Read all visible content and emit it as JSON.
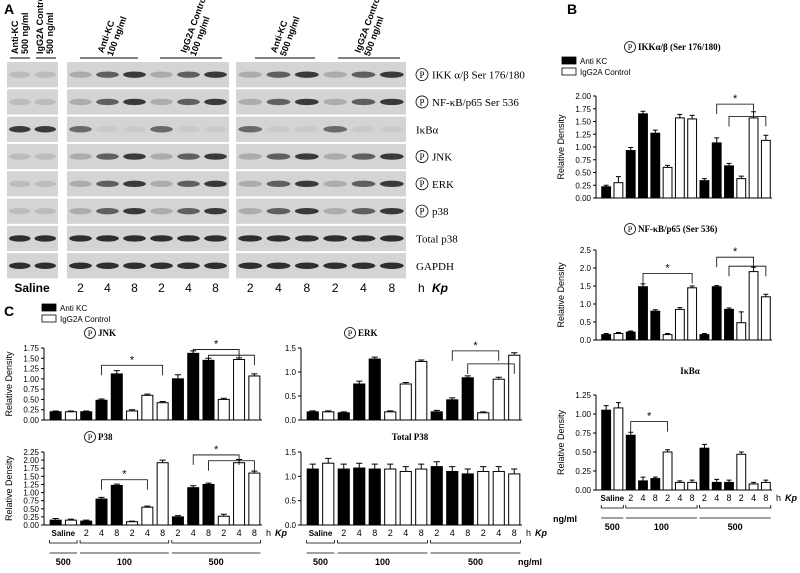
{
  "panel_labels": [
    "A",
    "B",
    "C"
  ],
  "panel_a": {
    "badge": "P",
    "columns": [
      {
        "name": "Anti-KC",
        "dose": "500 ng/ml"
      },
      {
        "name": "IgG2A Control",
        "dose": "500 ng/ml"
      },
      {
        "name": "Anti-KC",
        "dose": "100 ng/ml"
      },
      {
        "name": "IgG2A Control",
        "dose": "100 ng/ml"
      },
      {
        "name": "Anti-KC",
        "dose": "500 ng/ml"
      },
      {
        "name": "IgG2A Control",
        "dose": "500 ng/ml"
      }
    ],
    "rows": [
      {
        "text": "IKK α/β Ser 176/180",
        "phospho": true
      },
      {
        "text": "NF-κB/p65 Ser 536",
        "phospho": true
      },
      {
        "text": "IκBα",
        "phospho": false
      },
      {
        "text": "JNK",
        "phospho": true
      },
      {
        "text": "ERK",
        "phospho": true
      },
      {
        "text": "p38",
        "phospho": true
      },
      {
        "text": "Total p38",
        "phospho": false
      },
      {
        "text": "GAPDH",
        "phospho": false
      }
    ],
    "saline": "Saline",
    "lanes": [
      "2",
      "4",
      "8",
      "2",
      "4",
      "8",
      "2",
      "4",
      "8",
      "2",
      "4",
      "8"
    ],
    "x_unit": "h",
    "x_name": "Kp"
  },
  "chart_data": [
    {
      "type": "bar",
      "title": "IKKα/β (Ser 176/180)",
      "badge": "P",
      "ylabel": "Relative Density",
      "annotations": [
        "*"
      ],
      "ylim": [
        0,
        2
      ],
      "yticks": [
        {
          "value": 0,
          "label": "0.00"
        },
        {
          "value": 0.25,
          "label": "0.25"
        },
        {
          "value": 0.5,
          "label": "0.50"
        },
        {
          "value": 0.75,
          "label": "0.75"
        },
        {
          "value": 1,
          "label": "1.00"
        },
        {
          "value": 1.25,
          "label": "1.25"
        },
        {
          "value": 1.5,
          "label": "1.50"
        },
        {
          "value": 1.75,
          "label": "1.75"
        },
        {
          "value": 2,
          "label": "2.00"
        }
      ],
      "series": [
        {
          "name": "Anti KC",
          "color": "#000000",
          "values": [
            0.22,
            null,
            0.93,
            1.65,
            1.27,
            null,
            null,
            null,
            0.34,
            1.08,
            0.63,
            null,
            null,
            null
          ],
          "errors": [
            0.03,
            null,
            0.06,
            0.05,
            0.06,
            null,
            null,
            null,
            0.04,
            0.1,
            0.05,
            null,
            null,
            null
          ]
        },
        {
          "name": "IgG2A Control",
          "color": "#ffffff",
          "values": [
            null,
            0.3,
            null,
            null,
            null,
            0.6,
            1.57,
            1.55,
            null,
            null,
            null,
            0.38,
            1.57,
            1.13
          ],
          "errors": [
            null,
            0.12,
            null,
            null,
            null,
            0.04,
            0.07,
            0.07,
            null,
            null,
            null,
            0.05,
            0.12,
            0.1
          ]
        }
      ]
    },
    {
      "type": "bar",
      "title": "NF-κB/p65 (Ser 536)",
      "badge": "P",
      "ylabel": "Relative Density",
      "annotations": [
        "*",
        "*"
      ],
      "ylim": [
        0,
        2.5
      ],
      "yticks": [
        {
          "value": 0,
          "label": "0.0"
        },
        {
          "value": 0.5,
          "label": "0.5"
        },
        {
          "value": 1,
          "label": "1.0"
        },
        {
          "value": 1.5,
          "label": "1.5"
        },
        {
          "value": 2,
          "label": "2.0"
        },
        {
          "value": 2.5,
          "label": "2.5"
        }
      ],
      "series": [
        {
          "color": "#000000",
          "values": [
            0.15,
            null,
            0.22,
            1.48,
            0.8,
            null,
            null,
            null,
            0.15,
            1.48,
            0.85,
            null,
            null,
            null
          ],
          "errors": [
            0.03,
            null,
            0.03,
            0.08,
            0.04,
            null,
            null,
            null,
            0.03,
            0.03,
            0.04,
            null,
            null,
            null
          ]
        },
        {
          "color": "#ffffff",
          "values": [
            null,
            0.18,
            null,
            null,
            null,
            0.15,
            0.85,
            1.45,
            null,
            null,
            null,
            0.48,
            1.9,
            1.2
          ],
          "errors": [
            null,
            0.03,
            null,
            null,
            null,
            0.03,
            0.05,
            0.05,
            null,
            null,
            null,
            0.3,
            0.12,
            0.07
          ]
        }
      ]
    },
    {
      "type": "bar",
      "title": "IκBα",
      "ylabel": "Relative Density",
      "annotations": [
        "*"
      ],
      "categories": [
        "Saline",
        null,
        "2",
        "4",
        "8",
        "2",
        "4",
        "8",
        "2",
        "4",
        "8",
        "2",
        "4",
        "8"
      ],
      "x_unit": "h",
      "x_name": "Kp",
      "group_unit": "ng/ml",
      "group_labels": [
        "500",
        "100",
        "500"
      ],
      "ylim": [
        0,
        1.25
      ],
      "yticks": [
        {
          "value": 0,
          "label": "0.00"
        },
        {
          "value": 0.25,
          "label": "0.25"
        },
        {
          "value": 0.5,
          "label": "0.50"
        },
        {
          "value": 0.75,
          "label": "0.75"
        },
        {
          "value": 1,
          "label": "1.00"
        },
        {
          "value": 1.25,
          "label": "1.25"
        }
      ],
      "series": [
        {
          "color": "#000000",
          "values": [
            1.05,
            null,
            0.72,
            0.12,
            0.15,
            null,
            null,
            null,
            0.55,
            0.1,
            0.1,
            null,
            null,
            null
          ],
          "errors": [
            0.06,
            null,
            0.04,
            0.05,
            0.02,
            null,
            null,
            null,
            0.05,
            0.04,
            0.03,
            null,
            null,
            null
          ]
        },
        {
          "color": "#ffffff",
          "values": [
            null,
            1.08,
            null,
            null,
            null,
            0.5,
            0.1,
            0.1,
            null,
            null,
            null,
            0.47,
            0.08,
            0.1
          ],
          "errors": [
            null,
            0.07,
            null,
            null,
            null,
            0.03,
            0.02,
            0.03,
            null,
            null,
            null,
            0.03,
            0.02,
            0.03
          ]
        }
      ]
    },
    {
      "type": "bar",
      "title": "JNK",
      "badge": "P",
      "ylabel": "Relative Density",
      "annotations": [
        "*",
        "*"
      ],
      "ylim": [
        0,
        1.75
      ],
      "yticks": [
        {
          "value": 0,
          "label": "0.00"
        },
        {
          "value": 0.25,
          "label": "0.25"
        },
        {
          "value": 0.5,
          "label": "0.50"
        },
        {
          "value": 0.75,
          "label": "0.75"
        },
        {
          "value": 1,
          "label": "1.00"
        },
        {
          "value": 1.25,
          "label": "1.25"
        },
        {
          "value": 1.5,
          "label": "1.50"
        },
        {
          "value": 1.75,
          "label": "1.75"
        }
      ],
      "series": [
        {
          "name": "Anti KC",
          "color": "#000000",
          "values": [
            0.2,
            null,
            0.2,
            0.48,
            1.12,
            null,
            null,
            null,
            1.0,
            1.62,
            1.45,
            null,
            null,
            null
          ],
          "errors": [
            0.02,
            null,
            0.02,
            0.03,
            0.08,
            null,
            null,
            null,
            0.1,
            0.06,
            0.05,
            null,
            null,
            null
          ]
        },
        {
          "name": "IgG2A Control",
          "color": "#ffffff",
          "values": [
            null,
            0.2,
            null,
            null,
            null,
            0.22,
            0.6,
            0.42,
            null,
            null,
            null,
            0.5,
            1.47,
            1.07
          ],
          "errors": [
            null,
            0.02,
            null,
            null,
            null,
            0.03,
            0.03,
            0.03,
            null,
            null,
            null,
            0.03,
            0.04,
            0.05
          ]
        }
      ]
    },
    {
      "type": "bar",
      "title": "ERK",
      "badge": "P",
      "annotations": [
        "*"
      ],
      "ylim": [
        0,
        1.5
      ],
      "yticks": [
        {
          "value": 0,
          "label": "0.0"
        },
        {
          "value": 0.5,
          "label": "0.5"
        },
        {
          "value": 1,
          "label": "1.0"
        },
        {
          "value": 1.5,
          "label": "1.5"
        }
      ],
      "series": [
        {
          "color": "#000000",
          "values": [
            0.17,
            null,
            0.15,
            0.75,
            1.27,
            null,
            null,
            null,
            0.17,
            0.42,
            0.88,
            null,
            null,
            null
          ],
          "errors": [
            0.02,
            null,
            0.02,
            0.06,
            0.04,
            null,
            null,
            null,
            0.03,
            0.04,
            0.04,
            null,
            null,
            null
          ]
        },
        {
          "color": "#ffffff",
          "values": [
            null,
            0.17,
            null,
            null,
            null,
            0.17,
            0.75,
            1.22,
            null,
            null,
            null,
            0.15,
            0.85,
            1.35
          ],
          "errors": [
            null,
            0.02,
            null,
            null,
            null,
            0.02,
            0.03,
            0.03,
            null,
            null,
            null,
            0.02,
            0.04,
            0.05
          ]
        }
      ]
    },
    {
      "type": "bar",
      "title": "P38",
      "badge": "P",
      "ylabel": "Relative Density",
      "annotations": [
        "*",
        "*"
      ],
      "categories": [
        "Saline",
        null,
        "2",
        "4",
        "8",
        "2",
        "4",
        "8",
        "2",
        "4",
        "8",
        "2",
        "4",
        "8"
      ],
      "x_unit": "h",
      "x_name": "Kp",
      "group_labels": [
        "500",
        "100",
        "500"
      ],
      "ylim": [
        0,
        2.25
      ],
      "yticks": [
        {
          "value": 0,
          "label": "0.00"
        },
        {
          "value": 0.25,
          "label": "0.25"
        },
        {
          "value": 0.5,
          "label": "0.50"
        },
        {
          "value": 0.75,
          "label": "0.75"
        },
        {
          "value": 1,
          "label": "1.00"
        },
        {
          "value": 1.25,
          "label": "1.25"
        },
        {
          "value": 1.5,
          "label": "1.50"
        },
        {
          "value": 1.75,
          "label": "1.75"
        },
        {
          "value": 2,
          "label": "2.00"
        },
        {
          "value": 2.25,
          "label": "2.25"
        }
      ],
      "series": [
        {
          "color": "#000000",
          "values": [
            0.15,
            null,
            0.12,
            0.8,
            1.22,
            null,
            null,
            null,
            0.25,
            1.15,
            1.25,
            null,
            null,
            null
          ],
          "errors": [
            0.05,
            null,
            0.03,
            0.05,
            0.04,
            null,
            null,
            null,
            0.04,
            0.06,
            0.04,
            null,
            null,
            null
          ]
        },
        {
          "color": "#ffffff",
          "values": [
            null,
            0.15,
            null,
            null,
            null,
            0.1,
            0.55,
            1.92,
            null,
            null,
            null,
            0.27,
            1.92,
            1.6
          ],
          "errors": [
            null,
            0.03,
            null,
            null,
            null,
            0.02,
            0.03,
            0.08,
            null,
            null,
            null,
            0.06,
            0.1,
            0.06
          ]
        }
      ]
    },
    {
      "type": "bar",
      "title": "Total P38",
      "categories": [
        "Saline",
        null,
        "2",
        "4",
        "8",
        "2",
        "4",
        "8",
        "2",
        "4",
        "8",
        "2",
        "4",
        "8"
      ],
      "x_unit": "h",
      "x_name": "Kp",
      "group_unit": "ng/ml",
      "group_labels": [
        "500",
        "100",
        "500"
      ],
      "ylim": [
        0,
        1.5
      ],
      "yticks": [
        {
          "value": 0,
          "label": "0.0"
        },
        {
          "value": 0.5,
          "label": "0.5"
        },
        {
          "value": 1,
          "label": "1.0"
        },
        {
          "value": 1.5,
          "label": "1.5"
        }
      ],
      "series": [
        {
          "color": "#000000",
          "values": [
            1.15,
            null,
            1.15,
            1.17,
            1.15,
            null,
            null,
            null,
            1.2,
            1.1,
            1.05,
            null,
            null,
            null
          ],
          "errors": [
            0.1,
            null,
            0.1,
            0.1,
            0.1,
            null,
            null,
            null,
            0.1,
            0.1,
            0.1,
            null,
            null,
            null
          ]
        },
        {
          "color": "#ffffff",
          "values": [
            null,
            1.27,
            null,
            null,
            null,
            1.15,
            1.1,
            1.15,
            null,
            null,
            null,
            1.1,
            1.1,
            1.05
          ],
          "errors": [
            null,
            0.1,
            null,
            null,
            null,
            0.1,
            0.1,
            0.1,
            null,
            null,
            null,
            0.1,
            0.1,
            0.1
          ]
        }
      ]
    }
  ]
}
